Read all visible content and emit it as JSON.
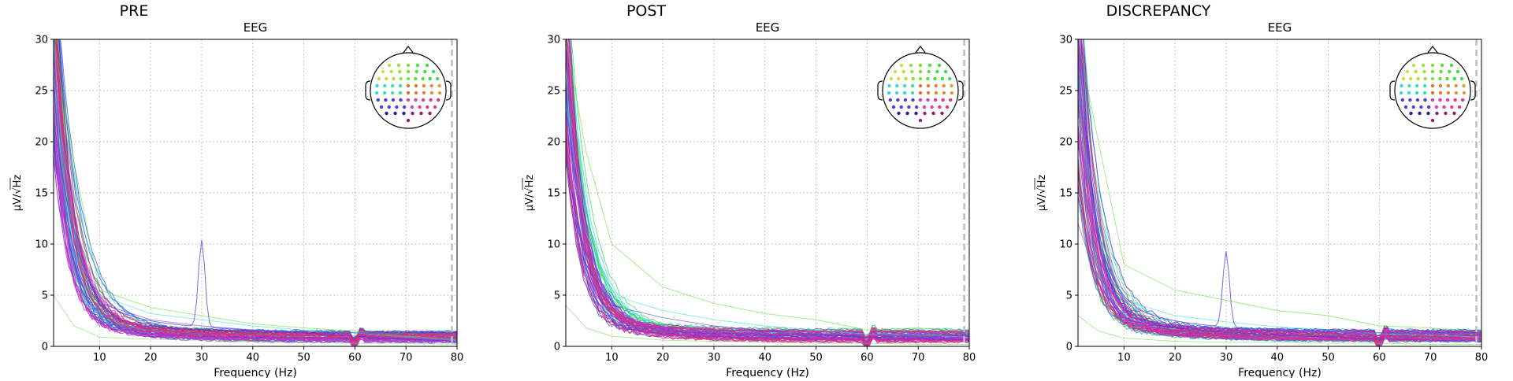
{
  "chart_data": [
    {
      "type": "line",
      "panel_label": "PRE",
      "title": "EEG",
      "xlabel": "Frequency (Hz)",
      "ylabel": "µV/√Hz",
      "xlim": [
        1,
        80
      ],
      "ylim": [
        0,
        30
      ],
      "xticks": [
        10,
        20,
        30,
        40,
        50,
        60,
        70,
        80
      ],
      "yticks": [
        0,
        5,
        10,
        15,
        20,
        25,
        30
      ],
      "grid": true,
      "vertical_marker_hz": 79,
      "inset": "sensor-layout-head",
      "channels": 60,
      "channel_profile": {
        "low_freq_range": [
          16,
          40
        ],
        "tail_range": [
          0.3,
          1.6
        ],
        "line_noise_hz": 60
      },
      "peak": {
        "frequency_hz": 30,
        "value": 12.7
      },
      "series": [
        {
          "x": [
            1,
            5,
            10,
            20,
            30,
            40,
            50,
            60,
            70,
            80
          ],
          "values": [
            30,
            18,
            5.5,
            3.8,
            3.0,
            2.2,
            1.8,
            1.5,
            1.0,
            0.7
          ]
        },
        {
          "x": [
            1,
            5,
            10,
            20,
            30,
            40,
            50,
            60,
            70,
            80
          ],
          "values": [
            26,
            12,
            5.0,
            3.2,
            2.6,
            2.0,
            1.6,
            1.3,
            0.9,
            0.6
          ]
        },
        {
          "x": [
            1,
            5,
            10,
            20,
            30,
            40,
            50,
            60,
            70,
            80
          ],
          "values": [
            22,
            10,
            4.2,
            2.6,
            2.0,
            1.6,
            1.3,
            1.0,
            0.7,
            0.5
          ]
        },
        {
          "x": [
            1,
            5,
            10,
            20,
            30,
            40,
            50,
            60,
            70,
            80
          ],
          "values": [
            5,
            2.0,
            0.9,
            0.7,
            0.6,
            0.5,
            0.4,
            0.3,
            0.3,
            0.2
          ]
        }
      ]
    },
    {
      "type": "line",
      "panel_label": "POST",
      "title": "EEG",
      "xlabel": "Frequency (Hz)",
      "ylabel": "µV/√Hz",
      "xlim": [
        1,
        80
      ],
      "ylim": [
        0,
        30
      ],
      "xticks": [
        10,
        20,
        30,
        40,
        50,
        60,
        70,
        80
      ],
      "yticks": [
        0,
        5,
        10,
        15,
        20,
        25,
        30
      ],
      "grid": true,
      "vertical_marker_hz": 79,
      "inset": "sensor-layout-head",
      "channels": 60,
      "channel_profile": {
        "low_freq_range": [
          16,
          40
        ],
        "tail_range": [
          0.3,
          1.8
        ],
        "line_noise_hz": 60
      },
      "peak": null,
      "series": [
        {
          "x": [
            1,
            5,
            10,
            20,
            30,
            40,
            50,
            60,
            70,
            80
          ],
          "values": [
            30,
            19,
            10,
            5.8,
            4.2,
            3.2,
            2.6,
            1.6,
            1.8,
            1.4
          ]
        },
        {
          "x": [
            1,
            5,
            10,
            20,
            30,
            40,
            50,
            60,
            70,
            80
          ],
          "values": [
            24,
            11,
            5.0,
            3.5,
            2.6,
            2.0,
            1.6,
            1.2,
            1.1,
            0.9
          ]
        },
        {
          "x": [
            1,
            5,
            10,
            20,
            30,
            40,
            50,
            60,
            70,
            80
          ],
          "values": [
            18,
            8,
            4.0,
            2.8,
            2.0,
            1.5,
            1.2,
            0.9,
            0.8,
            0.6
          ]
        },
        {
          "x": [
            1,
            5,
            10,
            20,
            30,
            40,
            50,
            60,
            70,
            80
          ],
          "values": [
            4,
            1.8,
            1.0,
            0.6,
            0.5,
            0.4,
            0.3,
            0.3,
            0.2,
            0.2
          ]
        }
      ]
    },
    {
      "type": "line",
      "panel_label": "DISCREPANCY",
      "title": "EEG",
      "xlabel": "Frequency (Hz)",
      "ylabel": "µV/√Hz",
      "xlim": [
        1,
        80
      ],
      "ylim": [
        0,
        30
      ],
      "xticks": [
        10,
        20,
        30,
        40,
        50,
        60,
        70,
        80
      ],
      "yticks": [
        0,
        5,
        10,
        15,
        20,
        25,
        30
      ],
      "grid": true,
      "vertical_marker_hz": 79,
      "inset": "sensor-layout-head",
      "channels": 60,
      "channel_profile": {
        "low_freq_range": [
          10,
          40
        ],
        "tail_range": [
          0.3,
          1.7
        ],
        "line_noise_hz": 60
      },
      "peak": {
        "frequency_hz": 30,
        "value": 11.6
      },
      "series": [
        {
          "x": [
            1,
            5,
            10,
            20,
            30,
            40,
            50,
            60,
            70,
            80
          ],
          "values": [
            30,
            20,
            8,
            5.5,
            4.5,
            3.5,
            3.0,
            2.0,
            1.8,
            1.4
          ]
        },
        {
          "x": [
            1,
            5,
            10,
            20,
            30,
            40,
            50,
            60,
            70,
            80
          ],
          "values": [
            23,
            11,
            4.5,
            3.0,
            2.4,
            1.9,
            1.6,
            1.2,
            1.1,
            0.9
          ]
        },
        {
          "x": [
            1,
            5,
            10,
            20,
            30,
            40,
            50,
            60,
            70,
            80
          ],
          "values": [
            12,
            6,
            2.6,
            1.8,
            1.4,
            1.1,
            0.9,
            0.7,
            0.6,
            0.5
          ]
        },
        {
          "x": [
            1,
            5,
            10,
            20,
            30,
            40,
            50,
            60,
            70,
            80
          ],
          "values": [
            3,
            1.5,
            0.8,
            0.5,
            0.4,
            0.4,
            0.3,
            0.3,
            0.2,
            0.2
          ]
        }
      ]
    }
  ]
}
